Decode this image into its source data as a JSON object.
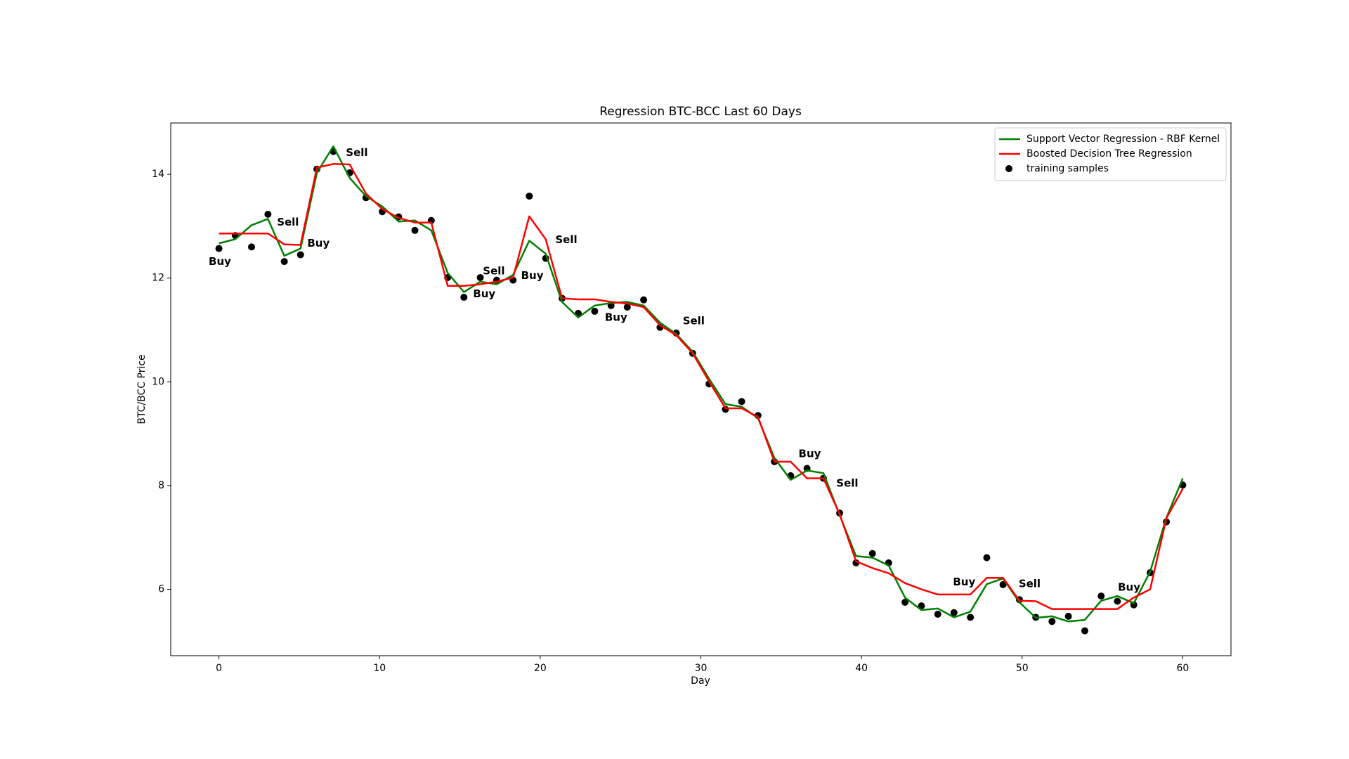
{
  "chart_data": {
    "type": "line",
    "title": "Regression BTC-BCC Last 60 Days",
    "x_label": "Day",
    "y_label": "BTC/BCC Price",
    "x": [
      0,
      1.02,
      2.03,
      3.05,
      4.07,
      5.08,
      6.1,
      7.12,
      8.14,
      9.15,
      10.17,
      11.19,
      12.2,
      13.22,
      14.24,
      15.25,
      16.27,
      17.29,
      18.31,
      19.32,
      20.34,
      21.36,
      22.37,
      23.39,
      24.41,
      25.42,
      26.44,
      27.46,
      28.47,
      29.49,
      30.51,
      31.53,
      32.54,
      33.56,
      34.58,
      35.59,
      36.61,
      37.63,
      38.64,
      39.66,
      40.68,
      41.69,
      42.71,
      43.73,
      44.75,
      45.76,
      46.78,
      47.8,
      48.81,
      49.83,
      50.85,
      51.86,
      52.88,
      53.9,
      54.92,
      55.93,
      56.95,
      57.97,
      58.98,
      60
    ],
    "series": [
      {
        "name": "Support Vector Regression - RBF Kernel",
        "color": "#008000",
        "style": "line",
        "values": [
          12.67,
          12.75,
          13.02,
          13.14,
          12.43,
          12.57,
          14.03,
          14.54,
          13.93,
          13.58,
          13.38,
          13.09,
          13.11,
          12.92,
          12.1,
          11.73,
          11.93,
          11.88,
          12.06,
          12.72,
          12.47,
          11.54,
          11.24,
          11.47,
          11.52,
          11.54,
          11.47,
          11.14,
          10.92,
          10.58,
          10.06,
          9.57,
          9.52,
          9.3,
          8.53,
          8.11,
          8.29,
          8.24,
          7.43,
          6.64,
          6.61,
          6.46,
          5.84,
          5.6,
          5.63,
          5.46,
          5.57,
          6.1,
          6.21,
          5.75,
          5.45,
          5.48,
          5.38,
          5.41,
          5.78,
          5.87,
          5.73,
          6.34,
          7.38,
          8.14
        ]
      },
      {
        "name": "Boosted Decision Tree Regression",
        "color": "#ff0000",
        "style": "line",
        "values": [
          12.86,
          12.86,
          12.86,
          12.86,
          12.65,
          12.64,
          14.13,
          14.2,
          14.19,
          13.63,
          13.33,
          13.16,
          13.07,
          13.07,
          11.85,
          11.85,
          11.88,
          11.93,
          12.01,
          13.19,
          12.75,
          11.61,
          11.59,
          11.59,
          11.54,
          11.51,
          11.44,
          11.09,
          10.9,
          10.55,
          10.01,
          9.49,
          9.49,
          9.32,
          8.46,
          8.46,
          8.14,
          8.14,
          7.45,
          6.54,
          6.41,
          6.31,
          6.12,
          6.0,
          5.9,
          5.9,
          5.9,
          6.22,
          6.22,
          5.78,
          5.77,
          5.62,
          5.62,
          5.62,
          5.62,
          5.62,
          5.84,
          6.0,
          7.37,
          7.94
        ]
      },
      {
        "name": "training samples",
        "color": "#000000",
        "style": "points",
        "values": [
          12.57,
          12.82,
          12.6,
          13.23,
          12.32,
          12.45,
          14.1,
          14.44,
          14.03,
          13.55,
          13.28,
          13.18,
          12.92,
          13.11,
          12.01,
          11.63,
          12.01,
          11.96,
          11.96,
          13.58,
          12.38,
          11.61,
          11.32,
          11.36,
          11.47,
          11.44,
          11.58,
          11.05,
          10.94,
          10.55,
          9.96,
          9.47,
          9.62,
          9.35,
          8.46,
          8.19,
          8.33,
          8.14,
          7.47,
          6.51,
          6.69,
          6.51,
          5.75,
          5.68,
          5.52,
          5.55,
          5.46,
          6.61,
          6.09,
          5.8,
          5.46,
          5.38,
          5.48,
          5.2,
          5.87,
          5.77,
          5.7,
          6.32,
          7.3,
          8.01
        ]
      }
    ],
    "xlim": [
      -3,
      63
    ],
    "ylim": [
      4.72,
      14.99
    ],
    "xticks": [
      0,
      10,
      20,
      30,
      40,
      50,
      60
    ],
    "yticks": [
      6,
      8,
      10,
      12,
      14
    ],
    "legend": "upper right",
    "annotations": [
      {
        "text": "Buy",
        "color": "#1a9a1a"
      },
      {
        "text": "Sell",
        "color": "#ee1111"
      },
      {
        "text": "Buy",
        "color": "#1a9a1a"
      },
      {
        "text": "Sell",
        "color": "#ee1111"
      },
      {
        "text": "Sell",
        "color": "#ee1111"
      },
      {
        "text": "Buy",
        "color": "#1a9a1a"
      },
      {
        "text": "Buy",
        "color": "#1a9a1a"
      },
      {
        "text": "Sell",
        "color": "#ee1111"
      },
      {
        "text": "Buy",
        "color": "#1a9a1a"
      },
      {
        "text": "Sell",
        "color": "#ee1111"
      },
      {
        "text": "Buy",
        "color": "#1a9a1a"
      },
      {
        "text": "Sell",
        "color": "#ee1111"
      },
      {
        "text": "Buy",
        "color": "#1a9a1a"
      },
      {
        "text": "Sell",
        "color": "#ee1111"
      },
      {
        "text": "Buy",
        "color": "#1a9a1a"
      }
    ]
  }
}
